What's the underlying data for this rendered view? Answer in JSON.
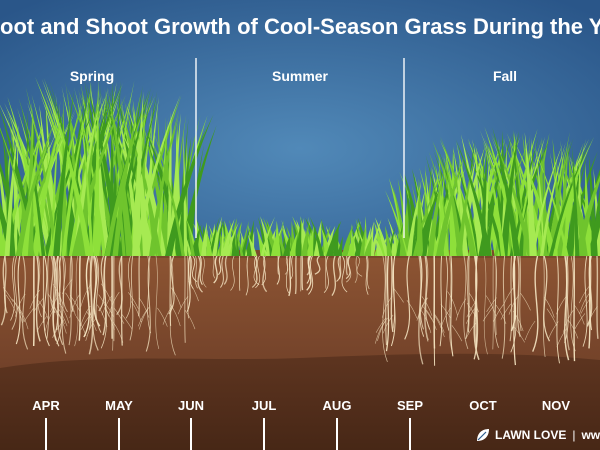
{
  "title": "oot and Shoot Growth of Cool-Season Grass During the Yea",
  "seasons": [
    "Spring",
    "Summer",
    "Fall"
  ],
  "months": [
    "APR",
    "MAY",
    "JUN",
    "JUL",
    "AUG",
    "SEP",
    "OCT",
    "NOV"
  ],
  "brand": {
    "name": "LAWN LOVE",
    "site": "ww"
  },
  "colors": {
    "sky_top": "#2a5689",
    "sky_bottom": "#4b83b3",
    "grass_light": "#8ee03a",
    "grass_dark": "#3f9a1e",
    "soil_top": "#8a5232",
    "soil_mid": "#6e3f26",
    "soil_bottom": "#4e2b18",
    "roots": "#f3e2bf",
    "divider": "#ffffff"
  }
}
